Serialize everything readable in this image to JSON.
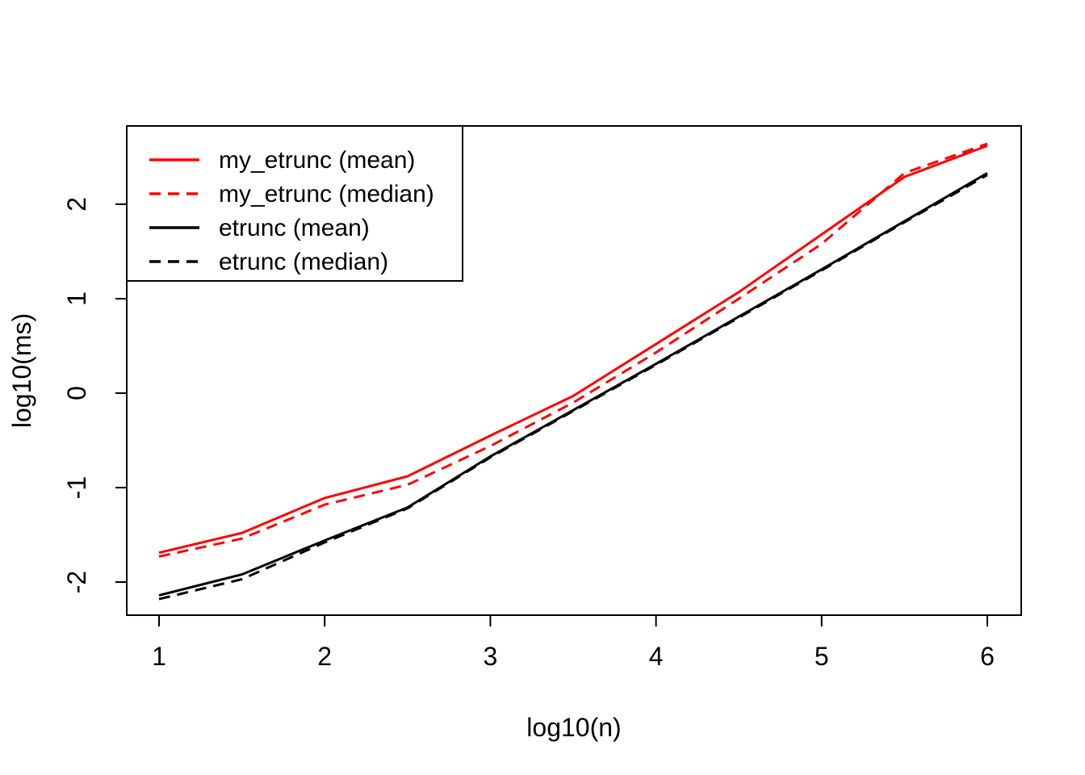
{
  "figure": {
    "background": "#ffffff",
    "axis_color": "#000000"
  },
  "chart_data": {
    "type": "line",
    "title": "",
    "xlabel": "log10(n)",
    "ylabel": "log10(ms)",
    "x": [
      1,
      1.5,
      2,
      2.5,
      3,
      3.5,
      4,
      4.5,
      5,
      5.5,
      6
    ],
    "x_ticks": [
      "1",
      "2",
      "3",
      "4",
      "5",
      "6"
    ],
    "x_tick_values": [
      1,
      2,
      3,
      4,
      5,
      6
    ],
    "y_ticks": [
      "-2",
      "-1",
      "0",
      "1",
      "2"
    ],
    "y_tick_values": [
      -2,
      -1,
      0,
      1,
      2
    ],
    "xlim": [
      0.8,
      6.2
    ],
    "ylim": [
      -2.35,
      2.83
    ],
    "grid": false,
    "legend_position": "topleft",
    "series": [
      {
        "name": "my_etrunc (mean)",
        "color": "#FF0000",
        "style": "solid",
        "values": [
          -1.69,
          -1.48,
          -1.11,
          -0.88,
          -0.45,
          -0.03,
          0.52,
          1.07,
          1.68,
          2.29,
          2.62
        ]
      },
      {
        "name": "my_etrunc (median)",
        "color": "#FF0000",
        "style": "dashed",
        "values": [
          -1.73,
          -1.54,
          -1.18,
          -0.97,
          -0.56,
          -0.1,
          0.43,
          1.0,
          1.58,
          2.33,
          2.64
        ]
      },
      {
        "name": "etrunc (mean)",
        "color": "#000000",
        "style": "solid",
        "values": [
          -2.14,
          -1.92,
          -1.56,
          -1.21,
          -0.67,
          -0.18,
          0.31,
          0.81,
          1.31,
          1.82,
          2.33
        ]
      },
      {
        "name": "etrunc (median)",
        "color": "#000000",
        "style": "dashed",
        "values": [
          -2.18,
          -1.97,
          -1.58,
          -1.22,
          -0.68,
          -0.19,
          0.3,
          0.8,
          1.3,
          1.81,
          2.31
        ]
      }
    ]
  }
}
